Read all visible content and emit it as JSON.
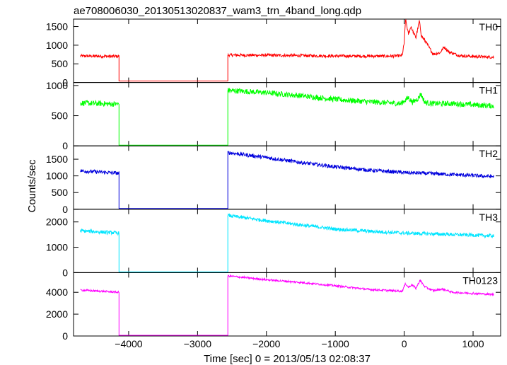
{
  "chart_data": {
    "type": "line",
    "title": "ae708006030_20130513020837_wam3_trn_4band_long.qdp",
    "xlabel": "Time [sec] 0 = 2013/05/13 02:08:37",
    "ylabel": "Counts/sec",
    "xlim": [
      -4800,
      1400
    ],
    "x_ticks": [
      -4000,
      -3000,
      -2000,
      -1000,
      0,
      1000
    ],
    "x_tick_labels": [
      "−4000",
      "−3000",
      "−2000",
      "−1000",
      "0",
      "1000"
    ],
    "panels": [
      {
        "name": "TH0",
        "color": "#ff0000",
        "ylim": [
          0,
          1700
        ],
        "y_ticks": [
          0,
          500,
          1000,
          1500
        ],
        "y_tick_labels": [
          "0",
          "500",
          "1000",
          "1500"
        ],
        "points": [
          [
            -4700,
            710
          ],
          [
            -4140,
            700
          ],
          [
            -4140,
            40
          ],
          [
            -2560,
            40
          ],
          [
            -2560,
            735
          ],
          [
            -2000,
            730
          ],
          [
            -1000,
            710
          ],
          [
            -200,
            705
          ],
          [
            -30,
            720
          ],
          [
            0,
            1050
          ],
          [
            20,
            1700
          ],
          [
            60,
            1300
          ],
          [
            100,
            1500
          ],
          [
            130,
            1350
          ],
          [
            170,
            1200
          ],
          [
            220,
            1650
          ],
          [
            250,
            1250
          ],
          [
            310,
            1100
          ],
          [
            420,
            760
          ],
          [
            520,
            800
          ],
          [
            580,
            950
          ],
          [
            650,
            820
          ],
          [
            800,
            720
          ],
          [
            1000,
            700
          ],
          [
            1300,
            680
          ]
        ],
        "noise": 40
      },
      {
        "name": "TH1",
        "color": "#00ff00",
        "ylim": [
          0,
          1050
        ],
        "y_ticks": [
          0,
          500,
          1000
        ],
        "y_tick_labels": [
          "0",
          "500",
          "1000"
        ],
        "points": [
          [
            -4700,
            710
          ],
          [
            -4140,
            690
          ],
          [
            -4140,
            0
          ],
          [
            -2560,
            0
          ],
          [
            -2560,
            920
          ],
          [
            -2000,
            880
          ],
          [
            -1500,
            830
          ],
          [
            -1000,
            770
          ],
          [
            -500,
            730
          ],
          [
            -50,
            700
          ],
          [
            20,
            760
          ],
          [
            60,
            800
          ],
          [
            120,
            720
          ],
          [
            200,
            780
          ],
          [
            240,
            860
          ],
          [
            300,
            720
          ],
          [
            400,
            700
          ],
          [
            700,
            700
          ],
          [
            1000,
            680
          ],
          [
            1300,
            660
          ]
        ],
        "noise": 45
      },
      {
        "name": "TH2",
        "color": "#0000dd",
        "ylim": [
          0,
          1900
        ],
        "y_ticks": [
          0,
          500,
          1000,
          1500
        ],
        "y_tick_labels": [
          "0",
          "500",
          "1000",
          "1500"
        ],
        "points": [
          [
            -4700,
            1150
          ],
          [
            -4140,
            1080
          ],
          [
            -4140,
            0
          ],
          [
            -2560,
            0
          ],
          [
            -2560,
            1700
          ],
          [
            -2000,
            1550
          ],
          [
            -1500,
            1400
          ],
          [
            -1000,
            1270
          ],
          [
            -500,
            1170
          ],
          [
            0,
            1100
          ],
          [
            500,
            1060
          ],
          [
            1000,
            1010
          ],
          [
            1300,
            980
          ]
        ],
        "noise": 55
      },
      {
        "name": "TH3",
        "color": "#00e5ff",
        "ylim": [
          0,
          2500
        ],
        "y_ticks": [
          0,
          1000,
          2000
        ],
        "y_tick_labels": [
          "0",
          "1000",
          "2000"
        ],
        "points": [
          [
            -4700,
            1650
          ],
          [
            -4140,
            1560
          ],
          [
            -4140,
            0
          ],
          [
            -2560,
            0
          ],
          [
            -2560,
            2250
          ],
          [
            -2000,
            2050
          ],
          [
            -1500,
            1880
          ],
          [
            -1000,
            1720
          ],
          [
            -500,
            1630
          ],
          [
            0,
            1560
          ],
          [
            500,
            1520
          ],
          [
            1000,
            1480
          ],
          [
            1300,
            1450
          ]
        ],
        "noise": 70
      },
      {
        "name": "TH0123",
        "color": "#ff00ff",
        "ylim": [
          0,
          5800
        ],
        "y_ticks": [
          0,
          2000,
          4000
        ],
        "y_tick_labels": [
          "0",
          "2000",
          "4000"
        ],
        "points": [
          [
            -4700,
            4200
          ],
          [
            -4140,
            4000
          ],
          [
            -4140,
            0
          ],
          [
            -2560,
            0
          ],
          [
            -2560,
            5500
          ],
          [
            -2000,
            5150
          ],
          [
            -1500,
            4900
          ],
          [
            -1000,
            4600
          ],
          [
            -500,
            4250
          ],
          [
            -30,
            4100
          ],
          [
            20,
            4800
          ],
          [
            60,
            4450
          ],
          [
            110,
            4700
          ],
          [
            170,
            4350
          ],
          [
            230,
            5100
          ],
          [
            300,
            4500
          ],
          [
            420,
            4150
          ],
          [
            560,
            4300
          ],
          [
            700,
            4000
          ],
          [
            1000,
            3900
          ],
          [
            1300,
            3800
          ]
        ],
        "noise": 90
      }
    ]
  }
}
